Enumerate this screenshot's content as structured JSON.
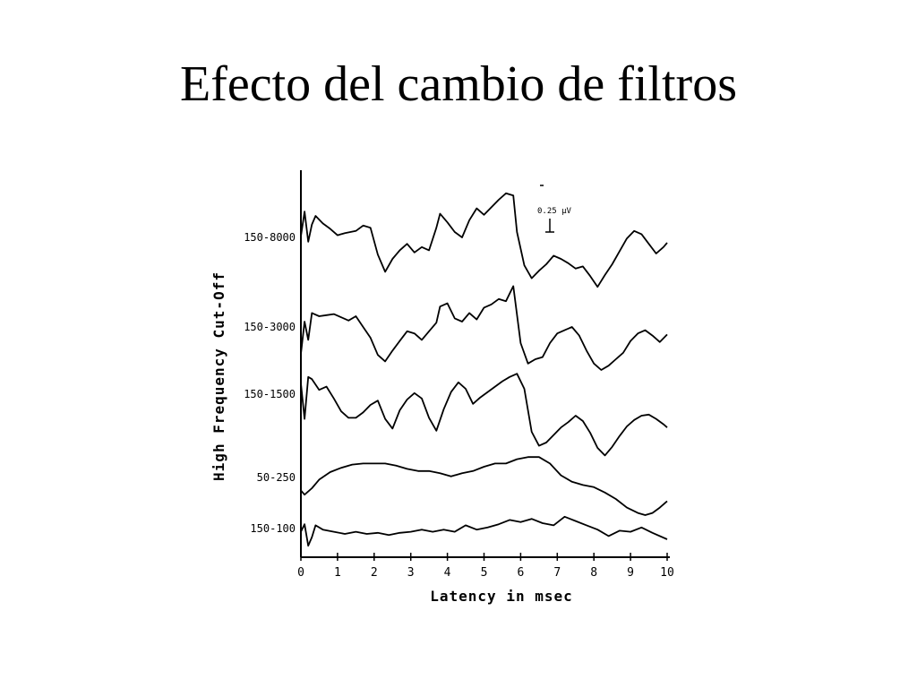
{
  "slide": {
    "title": "Efecto del cambio de filtros"
  },
  "chart_data": {
    "type": "line",
    "title": "Efecto del cambio de filtros",
    "xlabel": "Latency in msec",
    "ylabel": "High Frequency Cut-Off",
    "xlim": [
      0,
      10
    ],
    "x_ticks": [
      0,
      1,
      2,
      3,
      4,
      5,
      6,
      7,
      8,
      9,
      10
    ],
    "x_tick_labels": [
      "0",
      "1",
      "2",
      "3",
      "4",
      "5",
      "6",
      "7",
      "8",
      "9",
      "10"
    ],
    "scale_bar_label": "0.25 µV",
    "grid": false,
    "legend": "none",
    "series": [
      {
        "name": "150-8000",
        "x": [
          0,
          0.1,
          0.2,
          0.3,
          0.4,
          0.6,
          0.8,
          1.0,
          1.2,
          1.5,
          1.7,
          1.9,
          2.1,
          2.3,
          2.5,
          2.7,
          2.9,
          3.1,
          3.3,
          3.5,
          3.7,
          3.8,
          4.0,
          4.2,
          4.4,
          4.6,
          4.8,
          5.0,
          5.2,
          5.4,
          5.6,
          5.8,
          5.9,
          6.1,
          6.3,
          6.5,
          6.7,
          6.9,
          7.1,
          7.3,
          7.5,
          7.7,
          7.9,
          8.1,
          8.3,
          8.5,
          8.7,
          8.9,
          9.1,
          9.3,
          9.5,
          9.7,
          9.9,
          10.0
        ],
        "y": [
          0.1,
          2.4,
          -0.4,
          1.2,
          2.0,
          1.3,
          0.8,
          0.2,
          0.4,
          0.6,
          1.1,
          0.9,
          -1.6,
          -3.2,
          -2.0,
          -1.2,
          -0.6,
          -1.4,
          -0.9,
          -1.2,
          0.9,
          2.2,
          1.4,
          0.5,
          0.0,
          1.6,
          2.7,
          2.1,
          2.8,
          3.5,
          4.1,
          3.9,
          0.5,
          -2.6,
          -3.8,
          -3.1,
          -2.5,
          -1.7,
          -2.0,
          -2.4,
          -2.9,
          -2.7,
          -3.6,
          -4.6,
          -3.5,
          -2.5,
          -1.3,
          -0.1,
          0.6,
          0.3,
          -0.6,
          -1.5,
          -0.9,
          -0.5
        ]
      },
      {
        "name": "150-3000",
        "x": [
          0,
          0.1,
          0.2,
          0.3,
          0.5,
          0.7,
          0.9,
          1.1,
          1.3,
          1.5,
          1.7,
          1.9,
          2.1,
          2.3,
          2.5,
          2.7,
          2.9,
          3.1,
          3.3,
          3.5,
          3.7,
          3.8,
          4.0,
          4.2,
          4.4,
          4.6,
          4.8,
          5.0,
          5.2,
          5.4,
          5.6,
          5.8,
          6.0,
          6.2,
          6.4,
          6.6,
          6.8,
          7.0,
          7.2,
          7.4,
          7.6,
          7.8,
          8.0,
          8.2,
          8.4,
          8.6,
          8.8,
          9.0,
          9.2,
          9.4,
          9.6,
          9.8,
          10.0
        ],
        "y": [
          -2.5,
          0.5,
          -1.2,
          1.3,
          1.0,
          1.1,
          1.2,
          0.9,
          0.6,
          1.0,
          0.0,
          -1.0,
          -2.6,
          -3.2,
          -2.2,
          -1.3,
          -0.4,
          -0.6,
          -1.2,
          -0.4,
          0.4,
          1.9,
          2.2,
          0.8,
          0.5,
          1.3,
          0.7,
          1.8,
          2.1,
          2.6,
          2.4,
          3.8,
          -1.5,
          -3.4,
          -3.0,
          -2.8,
          -1.5,
          -0.6,
          -0.3,
          0.0,
          -0.8,
          -2.2,
          -3.4,
          -4.0,
          -3.6,
          -3.0,
          -2.4,
          -1.3,
          -0.6,
          -0.3,
          -0.8,
          -1.4,
          -0.7
        ]
      },
      {
        "name": "150-1500",
        "x": [
          0,
          0.1,
          0.2,
          0.3,
          0.5,
          0.7,
          0.9,
          1.1,
          1.3,
          1.5,
          1.7,
          1.9,
          2.1,
          2.3,
          2.5,
          2.7,
          2.9,
          3.1,
          3.3,
          3.5,
          3.7,
          3.9,
          4.1,
          4.3,
          4.5,
          4.7,
          4.9,
          5.1,
          5.3,
          5.5,
          5.7,
          5.9,
          6.1,
          6.3,
          6.5,
          6.7,
          6.9,
          7.1,
          7.3,
          7.5,
          7.7,
          7.9,
          8.1,
          8.3,
          8.5,
          8.7,
          8.9,
          9.1,
          9.3,
          9.5,
          9.7,
          9.9,
          10.0
        ],
        "y": [
          1.0,
          -2.3,
          1.6,
          1.4,
          0.4,
          0.7,
          -0.4,
          -1.6,
          -2.2,
          -2.2,
          -1.7,
          -1.0,
          -0.6,
          -2.3,
          -3.2,
          -1.5,
          -0.5,
          0.1,
          -0.4,
          -2.2,
          -3.4,
          -1.4,
          0.2,
          1.1,
          0.5,
          -0.9,
          -0.3,
          0.2,
          0.7,
          1.2,
          1.6,
          1.9,
          0.5,
          -3.5,
          -4.8,
          -4.5,
          -3.8,
          -3.1,
          -2.6,
          -2.0,
          -2.5,
          -3.6,
          -5.0,
          -5.7,
          -4.9,
          -3.9,
          -3.0,
          -2.4,
          -2.0,
          -1.9,
          -2.3,
          -2.8,
          -3.1
        ]
      },
      {
        "name": "50-250",
        "x": [
          0,
          0.1,
          0.3,
          0.5,
          0.8,
          1.1,
          1.4,
          1.7,
          2.0,
          2.3,
          2.6,
          2.9,
          3.2,
          3.5,
          3.8,
          4.1,
          4.4,
          4.7,
          5.0,
          5.3,
          5.6,
          5.9,
          6.2,
          6.5,
          6.8,
          7.1,
          7.4,
          7.7,
          8.0,
          8.3,
          8.6,
          8.9,
          9.2,
          9.4,
          9.6,
          9.8,
          10.0
        ],
        "y": [
          -1.2,
          -1.6,
          -1.0,
          -0.2,
          0.5,
          0.9,
          1.2,
          1.3,
          1.3,
          1.3,
          1.1,
          0.8,
          0.6,
          0.6,
          0.4,
          0.1,
          0.4,
          0.6,
          1.0,
          1.3,
          1.3,
          1.7,
          1.9,
          1.9,
          1.3,
          0.2,
          -0.4,
          -0.7,
          -0.9,
          -1.4,
          -2.0,
          -2.8,
          -3.3,
          -3.5,
          -3.3,
          -2.8,
          -2.2
        ]
      },
      {
        "name": "150-100",
        "x": [
          0,
          0.1,
          0.2,
          0.3,
          0.4,
          0.6,
          0.9,
          1.2,
          1.5,
          1.8,
          2.1,
          2.4,
          2.7,
          3.0,
          3.3,
          3.6,
          3.9,
          4.2,
          4.5,
          4.8,
          5.1,
          5.4,
          5.7,
          6.0,
          6.3,
          6.6,
          6.9,
          7.2,
          7.5,
          7.8,
          8.1,
          8.4,
          8.7,
          9.0,
          9.3,
          9.6,
          10.0
        ],
        "y": [
          -0.3,
          0.4,
          -1.6,
          -0.8,
          0.3,
          -0.1,
          -0.3,
          -0.5,
          -0.3,
          -0.5,
          -0.4,
          -0.6,
          -0.4,
          -0.3,
          -0.1,
          -0.3,
          -0.1,
          -0.3,
          0.3,
          -0.1,
          0.1,
          0.4,
          0.8,
          0.6,
          0.9,
          0.5,
          0.3,
          1.1,
          0.7,
          0.3,
          -0.1,
          -0.7,
          -0.2,
          -0.3,
          0.1,
          -0.4,
          -1.0
        ]
      }
    ]
  }
}
